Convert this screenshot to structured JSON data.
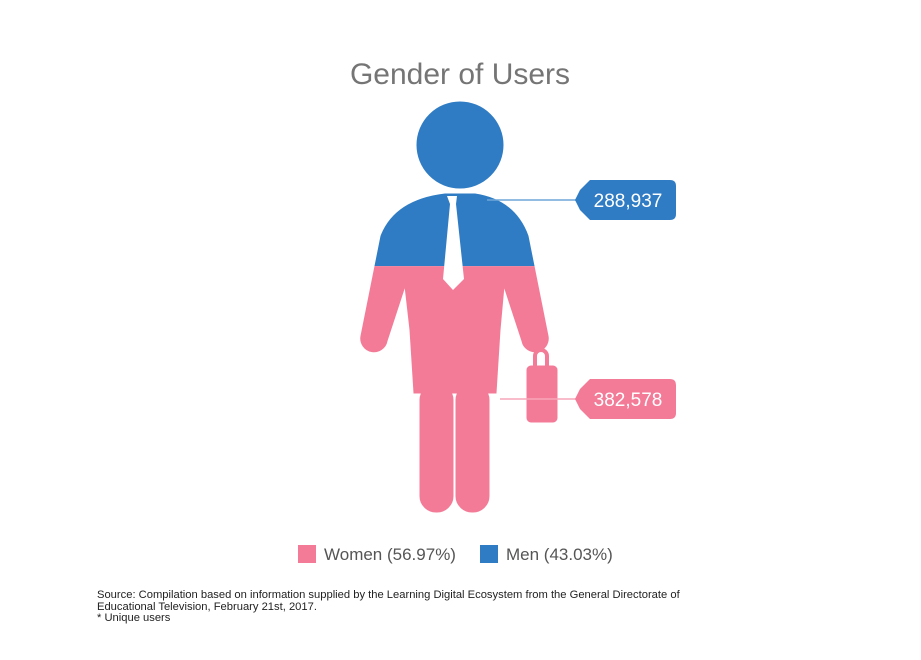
{
  "colors": {
    "women": "#f37b97",
    "men": "#2f7cc4",
    "title": "#757575",
    "leader_men": "#6fa6d8",
    "leader_women": "#f7a6b8"
  },
  "chart_data": {
    "type": "pictorial",
    "title": "Gender of Users",
    "series": [
      {
        "name": "Women",
        "value": 382578,
        "share_percent": 56.97,
        "label": "382,578",
        "legend": "Women (56.97%)"
      },
      {
        "name": "Men",
        "value": 288937,
        "share_percent": 43.03,
        "label": "288,937",
        "legend": "Men (43.03%)"
      }
    ],
    "legend_position": "bottom"
  },
  "source": {
    "line1": "Source: Compilation based on information supplied by the Learning Digital Ecosystem from the General Directorate of",
    "line2": "Educational Television, February 21st, 2017.",
    "note": "* Unique users"
  }
}
